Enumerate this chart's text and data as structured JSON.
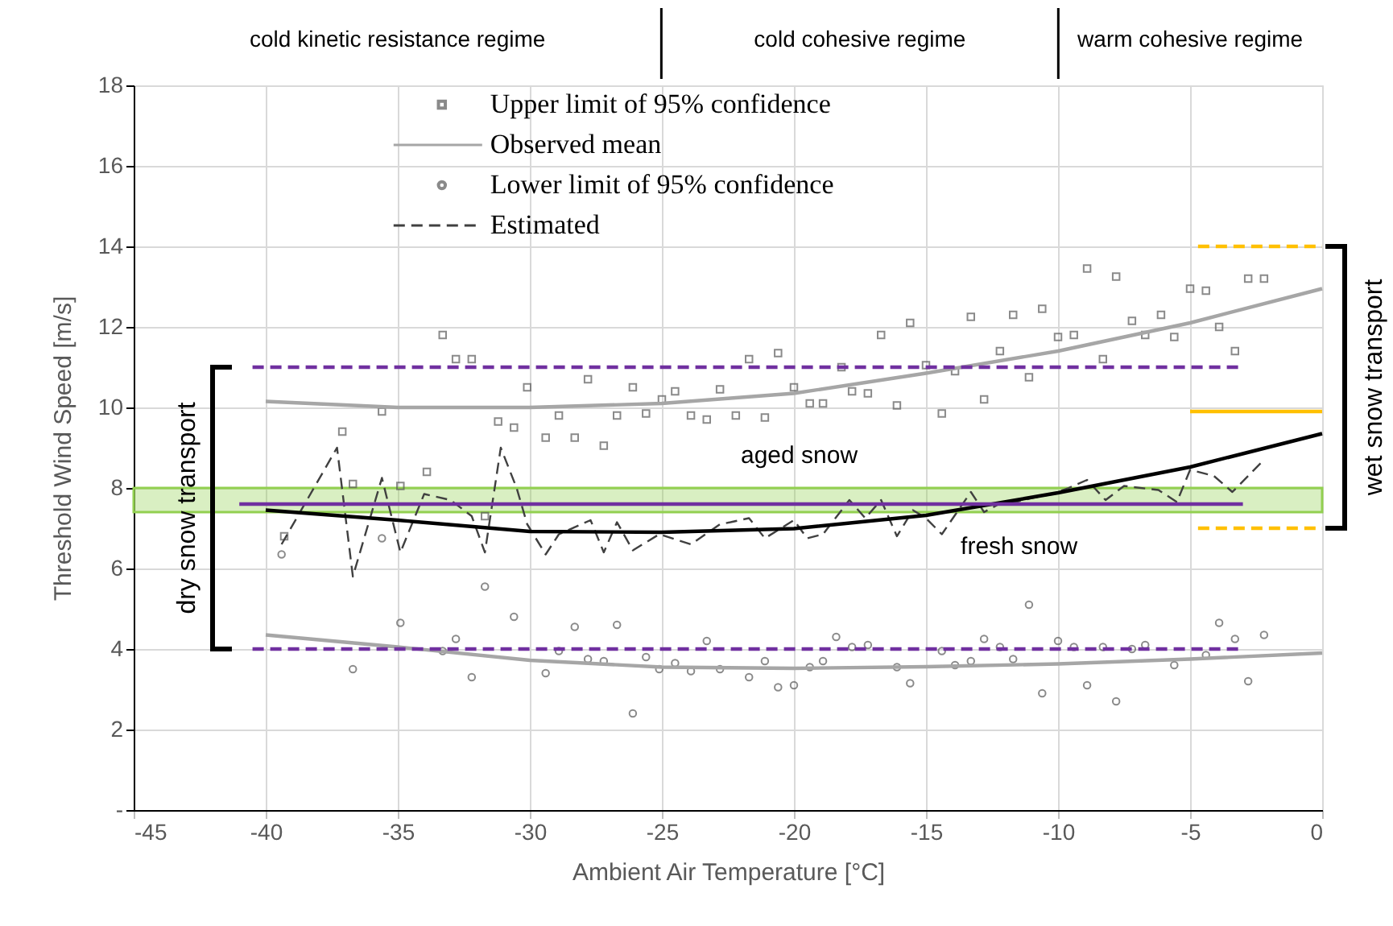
{
  "chart_data": {
    "type": "scatter",
    "xlabel": "Ambient Air Temperature [°C]",
    "ylabel": "Threshold Wind Speed [m/s]",
    "xlim": [
      -45,
      0
    ],
    "xticks": [
      -45,
      -40,
      -35,
      -30,
      -25,
      -20,
      -15,
      -10,
      -5,
      0
    ],
    "ylim": [
      0,
      18
    ],
    "yticks": [
      {
        "value": 0,
        "label": "-"
      },
      2,
      4,
      6,
      8,
      10,
      12,
      14,
      16,
      18
    ],
    "grid": true,
    "legend": "top",
    "series": [
      {
        "name": "Upper limit of 95% confidence",
        "marker": "square",
        "color": "#595959",
        "x": [
          -39.3,
          -37.1,
          -36.7,
          -35.6,
          -34.9,
          -33.9,
          -33.3,
          -32.8,
          -32.2,
          -31.7,
          -31.2,
          -30.6,
          -30.1,
          -29.4,
          -28.9,
          -28.3,
          -27.8,
          -27.2,
          -26.7,
          -26.1,
          -25.6,
          -25.0,
          -24.5,
          -23.9,
          -23.3,
          -22.8,
          -22.2,
          -21.7,
          -21.1,
          -20.6,
          -20.0,
          -19.4,
          -18.9,
          -18.2,
          -17.8,
          -17.2,
          -16.7,
          -16.1,
          -15.6,
          -15.0,
          -14.4,
          -13.9,
          -13.3,
          -12.8,
          -12.2,
          -11.7,
          -11.1,
          -10.6,
          -10.0,
          -9.4,
          -8.9,
          -8.3,
          -7.8,
          -7.2,
          -6.7,
          -6.1,
          -5.6,
          -5.0,
          -4.4,
          -3.9,
          -3.3,
          -2.8,
          -2.2
        ],
        "values": [
          6.8,
          9.4,
          8.1,
          9.9,
          8.05,
          8.4,
          11.8,
          11.2,
          11.2,
          7.3,
          9.65,
          9.5,
          10.5,
          9.25,
          9.8,
          9.25,
          10.7,
          9.05,
          9.8,
          10.5,
          9.85,
          10.2,
          10.4,
          9.8,
          9.7,
          10.45,
          9.8,
          11.2,
          9.75,
          11.35,
          10.5,
          10.1,
          10.1,
          11.0,
          10.4,
          10.35,
          11.8,
          10.05,
          12.1,
          11.05,
          9.85,
          10.9,
          12.25,
          10.2,
          11.4,
          12.3,
          10.75,
          12.45,
          11.75,
          11.8,
          13.45,
          11.2,
          13.25,
          12.15,
          11.8,
          12.3,
          11.75,
          12.95,
          12.9,
          12.0,
          11.4,
          13.2,
          13.2
        ]
      },
      {
        "name": "Observed mean",
        "type": "line",
        "marker": "none",
        "color": "#a6a6a6",
        "x": [
          -40,
          -35,
          -30,
          -25,
          -20,
          -15,
          -10,
          -5,
          0
        ],
        "values": [
          10.15,
          10.0,
          10.0,
          10.1,
          10.35,
          10.85,
          11.4,
          12.1,
          12.95
        ]
      },
      {
        "name": "Lower limit of 95% confidence",
        "marker": "circle",
        "color": "#595959",
        "x": [
          -39.4,
          -36.7,
          -35.6,
          -34.9,
          -33.3,
          -32.8,
          -32.2,
          -31.7,
          -30.6,
          -29.4,
          -28.9,
          -28.3,
          -27.8,
          -27.2,
          -26.7,
          -26.1,
          -25.6,
          -25.1,
          -24.5,
          -23.9,
          -23.3,
          -22.8,
          -21.7,
          -21.1,
          -20.6,
          -20.0,
          -19.4,
          -18.9,
          -18.4,
          -17.8,
          -17.2,
          -16.1,
          -15.6,
          -14.4,
          -13.9,
          -13.3,
          -12.8,
          -12.2,
          -11.7,
          -11.1,
          -10.6,
          -10.0,
          -9.4,
          -8.9,
          -8.3,
          -7.8,
          -7.2,
          -6.7,
          -5.6,
          -4.4,
          -3.9,
          -3.3,
          -2.8,
          -2.2
        ],
        "values": [
          6.35,
          3.5,
          6.75,
          4.65,
          3.95,
          4.25,
          3.3,
          5.55,
          4.8,
          3.4,
          3.95,
          4.55,
          3.75,
          3.7,
          4.6,
          2.4,
          3.8,
          3.5,
          3.65,
          3.45,
          4.2,
          3.5,
          3.3,
          3.7,
          3.05,
          3.1,
          3.55,
          3.7,
          4.3,
          4.05,
          4.1,
          3.55,
          3.15,
          3.95,
          3.6,
          3.7,
          4.25,
          4.05,
          3.75,
          5.1,
          2.9,
          4.2,
          4.05,
          3.1,
          4.05,
          2.7,
          4.0,
          4.1,
          3.6,
          3.85,
          4.65,
          4.25,
          3.2,
          4.35
        ]
      },
      {
        "name": "Estimated",
        "type": "line",
        "marker": "none",
        "line_style": "dashed",
        "color": "#404040",
        "x": [
          -39.4,
          -37.3,
          -36.7,
          -35.6,
          -34.9,
          -34.0,
          -33.0,
          -32.2,
          -31.7,
          -31.1,
          -30.5,
          -30.1,
          -29.4,
          -28.9,
          -27.7,
          -27.2,
          -26.7,
          -26.1,
          -25.1,
          -23.9,
          -22.8,
          -22.4,
          -21.7,
          -21.1,
          -20.0,
          -19.5,
          -18.9,
          -17.9,
          -17.3,
          -16.7,
          -16.1,
          -15.5,
          -15.0,
          -14.4,
          -13.3,
          -12.8,
          -12.1,
          -11.6,
          -11.0,
          -10.2,
          -9.6,
          -8.9,
          -8.2,
          -7.5,
          -6.2,
          -5.5,
          -5.0,
          -4.1,
          -3.4,
          -2.2
        ],
        "values": [
          6.6,
          9.0,
          5.8,
          8.25,
          6.4,
          7.85,
          7.7,
          7.3,
          6.4,
          9.0,
          8.0,
          7.1,
          6.35,
          6.85,
          7.2,
          6.4,
          7.15,
          6.45,
          6.85,
          6.6,
          7.1,
          7.15,
          7.25,
          6.75,
          7.2,
          6.75,
          6.85,
          7.7,
          7.25,
          7.7,
          6.8,
          7.45,
          7.25,
          6.85,
          7.9,
          7.4,
          7.65,
          7.65,
          7.75,
          7.85,
          8.0,
          8.2,
          7.7,
          8.05,
          7.95,
          7.65,
          8.45,
          8.3,
          7.9,
          8.7
        ]
      },
      {
        "type": "line",
        "marker": "none",
        "color": "#a6a6a6",
        "x": [
          -40,
          -35,
          -30,
          -25,
          -20,
          -15,
          -10,
          -5,
          0
        ],
        "values": [
          4.35,
          4.05,
          3.72,
          3.55,
          3.52,
          3.56,
          3.63,
          3.75,
          3.9
        ]
      },
      {
        "type": "line",
        "marker": "none",
        "color": "#000000",
        "x": [
          -40,
          -35,
          -30,
          -25,
          -20,
          -15,
          -10,
          -5,
          0
        ],
        "values": [
          7.45,
          7.2,
          6.92,
          6.9,
          6.99,
          7.32,
          7.88,
          8.52,
          9.35
        ]
      },
      {
        "type": "line",
        "marker": "none",
        "line_style": "dashed",
        "color": "#7030a0",
        "x": [
          -40.5,
          -3
        ],
        "values": [
          11,
          11
        ]
      },
      {
        "type": "line",
        "marker": "none",
        "line_style": "dashed",
        "color": "#7030a0",
        "x": [
          -40.5,
          -3
        ],
        "values": [
          4,
          4
        ]
      },
      {
        "type": "line",
        "marker": "none",
        "color": "#7030a0",
        "x": [
          -41,
          -3
        ],
        "values": [
          7.6,
          7.6
        ]
      },
      {
        "type": "line",
        "marker": "none",
        "line_style": "dashed",
        "color": "#ffc000",
        "x": [
          -4.7,
          0
        ],
        "values": [
          14,
          14
        ]
      },
      {
        "type": "line",
        "marker": "none",
        "color": "#ffc000",
        "x": [
          -5,
          0
        ],
        "values": [
          9.9,
          9.9
        ]
      },
      {
        "type": "line",
        "marker": "none",
        "line_style": "dashed",
        "color": "#ffc000",
        "x": [
          -4.7,
          0
        ],
        "values": [
          7,
          7
        ]
      }
    ],
    "bands": [
      {
        "axis": "y",
        "from": 7.4,
        "to": 8.0,
        "color": "#92d050"
      }
    ],
    "annotations": [
      "cold kinetic resistance regime",
      "cold cohesive regime",
      "warm cohesive regime",
      "dry snow transport",
      "wet snow transport",
      "aged snow",
      "fresh snow"
    ]
  }
}
